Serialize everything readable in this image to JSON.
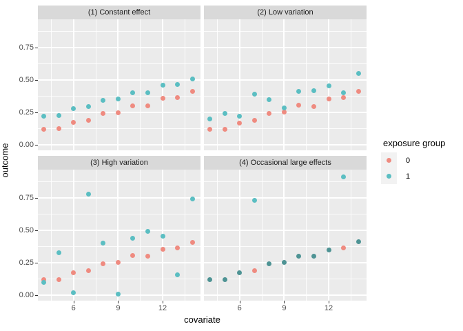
{
  "figure": {
    "x_axis_label": "covariate",
    "y_axis_label": "outcome"
  },
  "legend": {
    "title": "exposure group",
    "items": [
      {
        "label": "0",
        "color": "#EF8B80"
      },
      {
        "label": "1",
        "color": "#5BBEC2"
      }
    ]
  },
  "colors": {
    "panel_background": "#EBEBEB",
    "strip_background": "#D9D9D9",
    "gridline": "#FFFFFF",
    "group0": "#EF8B80",
    "group1": "#5BBEC2",
    "overlap": "#4E9394",
    "tick_text": "#4D4D4D"
  },
  "chart_data": {
    "type": "scatter",
    "title": "",
    "xlabel": "covariate",
    "ylabel": "outcome",
    "legend_title": "exposure group",
    "legend_position": "right",
    "grid": true,
    "x_range": [
      3.6,
      14.55
    ],
    "y_range": [
      -0.042,
      0.967
    ],
    "x_major_ticks": [
      6,
      9,
      12
    ],
    "x_tick_labels": [
      "6",
      "9",
      "12"
    ],
    "x_minor_gridlines": [
      4.5,
      7.5,
      10.5,
      13.5
    ],
    "y_major_ticks": [
      0,
      0.25,
      0.5,
      0.75
    ],
    "y_tick_labels": [
      "0.00",
      "0.25",
      "0.50",
      "0.75"
    ],
    "y_minor_gridlines": [
      0.125,
      0.375,
      0.625,
      0.875
    ],
    "x": [
      4,
      5,
      6,
      7,
      8,
      9,
      10,
      11,
      12,
      13,
      14
    ],
    "facets": [
      {
        "title": "(1) Constant effect",
        "series": [
          {
            "name": "0",
            "values": [
              0.12,
              0.125,
              0.175,
              0.19,
              0.24,
              0.25,
              0.3,
              0.3,
              0.36,
              0.365,
              0.41
            ]
          },
          {
            "name": "1",
            "values": [
              0.22,
              0.225,
              0.28,
              0.295,
              0.345,
              0.355,
              0.4,
              0.4,
              0.46,
              0.465,
              0.51
            ]
          }
        ]
      },
      {
        "title": "(2) Low variation",
        "series": [
          {
            "name": "0",
            "values": [
              0.12,
              0.12,
              0.17,
              0.19,
              0.24,
              0.255,
              0.305,
              0.295,
              0.355,
              0.365,
              0.41
            ]
          },
          {
            "name": "1",
            "values": [
              0.2,
              0.24,
              0.22,
              0.39,
              0.35,
              0.285,
              0.41,
              0.415,
              0.455,
              0.4,
              0.55
            ]
          }
        ]
      },
      {
        "title": "(3) High variation",
        "series": [
          {
            "name": "0",
            "values": [
              0.12,
              0.12,
              0.175,
              0.19,
              0.24,
              0.255,
              0.305,
              0.3,
              0.355,
              0.365,
              0.405
            ]
          },
          {
            "name": "1",
            "values": [
              0.1,
              0.33,
              0.02,
              0.78,
              0.4,
              0.01,
              0.44,
              0.49,
              0.455,
              0.155,
              0.74
            ]
          }
        ]
      },
      {
        "title": "(4) Occasional large effects",
        "series": [
          {
            "name": "0",
            "values": [
              0.12,
              0.12,
              0.175,
              0.19,
              0.24,
              0.255,
              0.3,
              0.3,
              0.35,
              0.365,
              0.41
            ]
          },
          {
            "name": "1",
            "values": [
              0.12,
              0.12,
              0.175,
              0.73,
              0.24,
              0.255,
              0.3,
              0.3,
              0.35,
              0.91,
              0.41
            ]
          }
        ]
      }
    ]
  }
}
